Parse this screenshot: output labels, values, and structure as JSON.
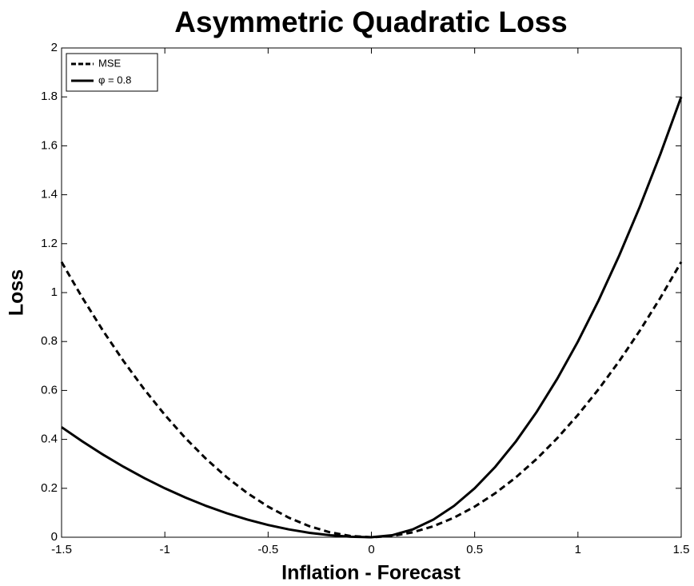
{
  "chart_data": {
    "type": "line",
    "title": "Asymmetric Quadratic Loss",
    "x_label": "Inflation - Forecast",
    "y_label": "Loss",
    "x": [
      -1.5,
      -1.4,
      -1.3,
      -1.2,
      -1.1,
      -1.0,
      -0.9,
      -0.8,
      -0.7,
      -0.6,
      -0.5,
      -0.4,
      -0.3,
      -0.2,
      -0.1,
      0,
      0.1,
      0.2,
      0.3,
      0.4,
      0.5,
      0.6,
      0.7,
      0.8,
      0.9,
      1.0,
      1.1,
      1.2,
      1.3,
      1.4,
      1.5
    ],
    "series": [
      {
        "name": "MSE",
        "color": "#000000",
        "linestyle": "dashed",
        "values": [
          1.125,
          0.98,
          0.845,
          0.72,
          0.605,
          0.5,
          0.405,
          0.32,
          0.245,
          0.18,
          0.125,
          0.08,
          0.045,
          0.02,
          0.005,
          0,
          0.005,
          0.02,
          0.045,
          0.08,
          0.125,
          0.18,
          0.245,
          0.32,
          0.405,
          0.5,
          0.605,
          0.72,
          0.845,
          0.98,
          1.125
        ]
      },
      {
        "name": "φ = 0.8",
        "color": "#000000",
        "linestyle": "solid",
        "values": [
          0.45,
          0.392,
          0.338,
          0.288,
          0.242,
          0.2,
          0.162,
          0.128,
          0.098,
          0.072,
          0.05,
          0.032,
          0.018,
          0.008,
          0.002,
          0,
          0.008,
          0.032,
          0.072,
          0.128,
          0.2,
          0.288,
          0.392,
          0.512,
          0.648,
          0.8,
          0.968,
          1.152,
          1.352,
          1.568,
          1.8
        ]
      }
    ],
    "xlim": [
      -1.5,
      1.5
    ],
    "xticks": [
      -1.5,
      -1,
      -0.5,
      0,
      0.5,
      1,
      1.5
    ],
    "ylim": [
      0,
      2
    ],
    "yticks": [
      0,
      0.2,
      0.4,
      0.6,
      0.8,
      1,
      1.2,
      1.4,
      1.6,
      1.8,
      2
    ],
    "grid": false,
    "legend": "upper left"
  }
}
